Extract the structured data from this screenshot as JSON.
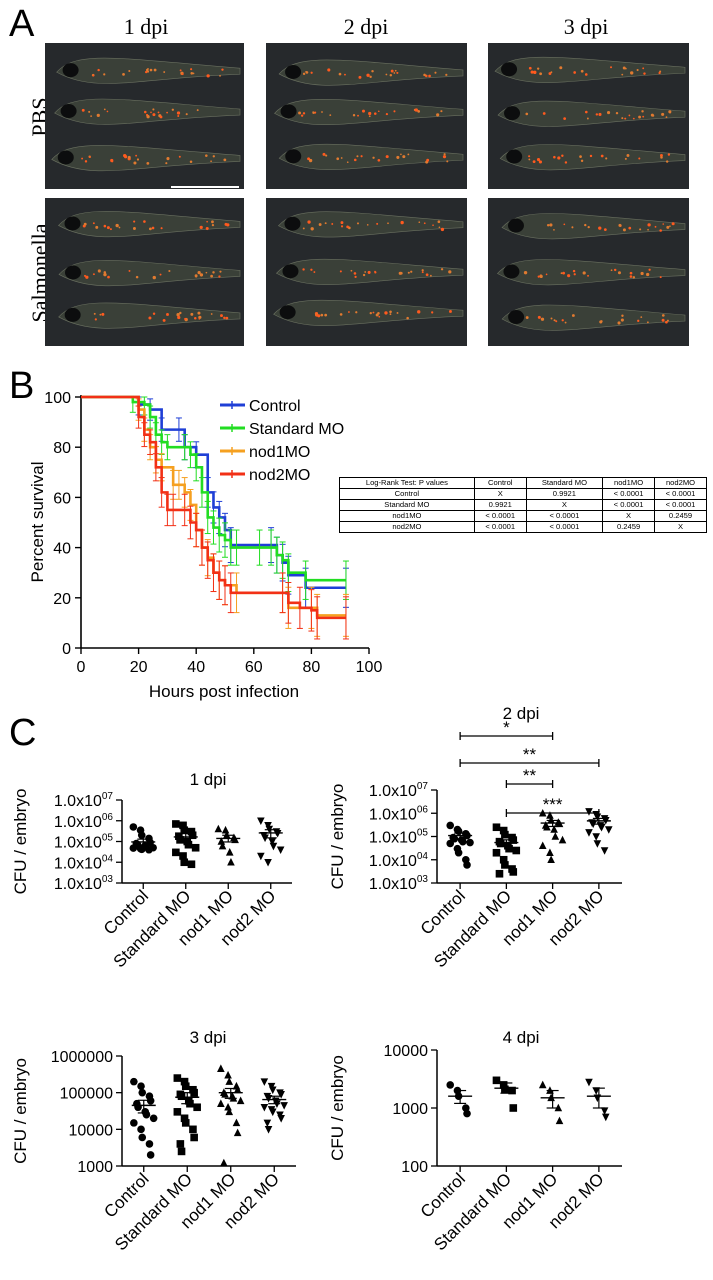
{
  "panel_labels": {
    "a": "A",
    "b": "B",
    "c": "C"
  },
  "panel_a": {
    "columns": [
      "1 dpi",
      "2 dpi",
      "3 dpi"
    ],
    "rows": [
      "PBS",
      "Salmonella"
    ]
  },
  "log_rank_table": {
    "title": "Log-Rank Test: P values",
    "headers": [
      "Control",
      "Standard MO",
      "nod1MO",
      "nod2MO"
    ],
    "rows": [
      {
        "label": "Control",
        "cells": [
          "X",
          "0.9921",
          "< 0.0001",
          "< 0.0001"
        ]
      },
      {
        "label": "Standard MO",
        "cells": [
          "0.9921",
          "X",
          "< 0.0001",
          "< 0.0001"
        ]
      },
      {
        "label": "nod1MO",
        "cells": [
          "< 0.0001",
          "< 0.0001",
          "X",
          "0.2459"
        ]
      },
      {
        "label": "nod2MO",
        "cells": [
          "< 0.0001",
          "< 0.0001",
          "0.2459",
          "X"
        ]
      }
    ]
  },
  "chart_data": [
    {
      "id": "survival",
      "type": "line",
      "xlabel": "Hours post infection",
      "ylabel": "Percent survival",
      "xlim": [
        0,
        100
      ],
      "ylim": [
        0,
        100
      ],
      "xticks": [
        "0",
        "20",
        "40",
        "60",
        "80",
        "100"
      ],
      "yticks": [
        "0",
        "20",
        "40",
        "60",
        "80",
        "100"
      ],
      "legend_position": "top-center",
      "series": [
        {
          "name": "Control",
          "color": "#1f3fd6",
          "points": [
            [
              0,
              100
            ],
            [
              18,
              100
            ],
            [
              20,
              97
            ],
            [
              24,
              95
            ],
            [
              28,
              87
            ],
            [
              34,
              87
            ],
            [
              36,
              80
            ],
            [
              40,
              77
            ],
            [
              44,
              62
            ],
            [
              46,
              56
            ],
            [
              48,
              52
            ],
            [
              50,
              47
            ],
            [
              52,
              41
            ],
            [
              66,
              41
            ],
            [
              68,
              37
            ],
            [
              70,
              34
            ],
            [
              72,
              29
            ],
            [
              78,
              24
            ],
            [
              92,
              24
            ]
          ]
        },
        {
          "name": "Standard MO",
          "color": "#22dd22",
          "points": [
            [
              0,
              100
            ],
            [
              15,
              100
            ],
            [
              18,
              98
            ],
            [
              22,
              97
            ],
            [
              24,
              92
            ],
            [
              26,
              85
            ],
            [
              28,
              82
            ],
            [
              30,
              80
            ],
            [
              36,
              80
            ],
            [
              38,
              77
            ],
            [
              40,
              72
            ],
            [
              42,
              62
            ],
            [
              44,
              52
            ],
            [
              46,
              48
            ],
            [
              48,
              45
            ],
            [
              50,
              43
            ],
            [
              52,
              40
            ],
            [
              54,
              40
            ],
            [
              62,
              40
            ],
            [
              66,
              40
            ],
            [
              68,
              37
            ],
            [
              70,
              35
            ],
            [
              72,
              30
            ],
            [
              78,
              27
            ],
            [
              92,
              27
            ]
          ]
        },
        {
          "name": "nod1MO",
          "color": "#f5a020",
          "points": [
            [
              0,
              100
            ],
            [
              18,
              100
            ],
            [
              20,
              95
            ],
            [
              22,
              87
            ],
            [
              24,
              80
            ],
            [
              26,
              75
            ],
            [
              28,
              72
            ],
            [
              32,
              65
            ],
            [
              34,
              65
            ],
            [
              36,
              62
            ],
            [
              38,
              57
            ],
            [
              40,
              47
            ],
            [
              42,
              40
            ],
            [
              44,
              36
            ],
            [
              46,
              30
            ],
            [
              48,
              27
            ],
            [
              50,
              25
            ],
            [
              54,
              22
            ],
            [
              70,
              22
            ],
            [
              72,
              16
            ],
            [
              80,
              16
            ],
            [
              82,
              13
            ],
            [
              92,
              13
            ]
          ]
        },
        {
          "name": "nod2MO",
          "color": "#f23016",
          "points": [
            [
              0,
              100
            ],
            [
              18,
              100
            ],
            [
              20,
              92
            ],
            [
              22,
              85
            ],
            [
              24,
              82
            ],
            [
              26,
              72
            ],
            [
              28,
              62
            ],
            [
              30,
              55
            ],
            [
              32,
              55
            ],
            [
              36,
              55
            ],
            [
              38,
              50
            ],
            [
              40,
              47
            ],
            [
              42,
              40
            ],
            [
              44,
              35
            ],
            [
              46,
              30
            ],
            [
              48,
              27
            ],
            [
              50,
              25
            ],
            [
              52,
              22
            ],
            [
              70,
              22
            ],
            [
              72,
              18
            ],
            [
              76,
              16
            ],
            [
              80,
              15
            ],
            [
              82,
              12
            ],
            [
              92,
              12
            ]
          ]
        }
      ]
    },
    {
      "id": "cfu_1dpi",
      "type": "scatter",
      "title": "1 dpi",
      "ylabel": "CFU / embryo",
      "scale": "log",
      "ylim": [
        1000,
        10000000
      ],
      "ytick_values": [
        1000,
        10000,
        100000,
        1000000,
        10000000
      ],
      "ytick_labels": [
        [
          "1.0x10",
          "03"
        ],
        [
          "1.0x10",
          "04"
        ],
        [
          "1.0x10",
          "05"
        ],
        [
          "1.0x10",
          "06"
        ],
        [
          "1.0x10",
          "07"
        ]
      ],
      "categories": [
        "Control",
        "Standard MO",
        "nod1 MO",
        "nod2 MO"
      ],
      "markers": [
        "circle",
        "square",
        "triangle-up",
        "triangle-down"
      ],
      "values": [
        [
          500000,
          350000,
          200000,
          140000,
          90000,
          80000,
          70000,
          60000,
          55000,
          50000,
          48000,
          45000,
          42000,
          40000
        ],
        [
          700000,
          600000,
          350000,
          300000,
          200000,
          180000,
          120000,
          100000,
          70000,
          50000,
          30000,
          20000,
          10000,
          8000
        ],
        [
          400000,
          350000,
          200000,
          150000,
          120000,
          100000,
          60000,
          30000,
          10000
        ],
        [
          1000000,
          600000,
          400000,
          300000,
          250000,
          200000,
          150000,
          100000,
          60000,
          40000,
          20000,
          10000
        ]
      ],
      "mean": [
        95000,
        165000,
        140000,
        260000
      ],
      "sem_low": [
        65000,
        100000,
        95000,
        150000
      ],
      "sem_high": [
        130000,
        240000,
        200000,
        370000
      ]
    },
    {
      "id": "cfu_2dpi",
      "type": "scatter",
      "title": "2 dpi",
      "ylabel": "CFU / embryo",
      "scale": "log",
      "ylim": [
        1000,
        10000000
      ],
      "ytick_values": [
        1000,
        10000,
        100000,
        1000000,
        10000000
      ],
      "ytick_labels": [
        [
          "1.0x10",
          "03"
        ],
        [
          "1.0x10",
          "04"
        ],
        [
          "1.0x10",
          "05"
        ],
        [
          "1.0x10",
          "06"
        ],
        [
          "1.0x10",
          "07"
        ]
      ],
      "categories": [
        "Control",
        "Standard MO",
        "nod1 MO",
        "nod2 MO"
      ],
      "markers": [
        "circle",
        "square",
        "triangle-up",
        "triangle-down"
      ],
      "values": [
        [
          300000,
          200000,
          170000,
          130000,
          110000,
          90000,
          80000,
          70000,
          60000,
          55000,
          50000,
          30000,
          20000,
          10000,
          6000
        ],
        [
          250000,
          180000,
          120000,
          90000,
          70000,
          60000,
          50000,
          40000,
          30000,
          25000,
          20000,
          10000,
          6000,
          4000,
          3000,
          2500
        ],
        [
          1000000,
          800000,
          500000,
          400000,
          350000,
          300000,
          250000,
          200000,
          100000,
          70000,
          40000,
          20000,
          10000
        ],
        [
          1200000,
          900000,
          700000,
          600000,
          500000,
          400000,
          350000,
          300000,
          250000,
          200000,
          150000,
          100000,
          50000,
          25000
        ]
      ],
      "mean": [
        110000,
        55000,
        380000,
        470000
      ],
      "sem_low": [
        80000,
        38000,
        270000,
        340000
      ],
      "sem_high": [
        140000,
        72000,
        490000,
        600000
      ],
      "significance": [
        {
          "from": 0,
          "to": 2,
          "label": "*"
        },
        {
          "from": 0,
          "to": 3,
          "label": "**"
        },
        {
          "from": 1,
          "to": 2,
          "label": "**"
        },
        {
          "from": 1,
          "to": 3,
          "label": "***"
        }
      ]
    },
    {
      "id": "cfu_3dpi",
      "type": "scatter",
      "title": "3 dpi",
      "ylabel": "CFU / embryo",
      "scale": "log",
      "ylim": [
        1000,
        1000000
      ],
      "ytick_values": [
        1000,
        10000,
        100000,
        1000000
      ],
      "ytick_labels": [
        [
          "1000",
          ""
        ],
        [
          "10000",
          ""
        ],
        [
          "100000",
          ""
        ],
        [
          "1000000",
          ""
        ]
      ],
      "categories": [
        "Control",
        "Standard MO",
        "nod1 MO",
        "nod2 MO"
      ],
      "markers": [
        "circle",
        "square",
        "triangle-up",
        "triangle-down"
      ],
      "values": [
        [
          200000,
          150000,
          100000,
          80000,
          60000,
          50000,
          40000,
          30000,
          25000,
          20000,
          15000,
          10000,
          6000,
          4000,
          2000
        ],
        [
          250000,
          200000,
          150000,
          120000,
          100000,
          90000,
          80000,
          60000,
          50000,
          40000,
          30000,
          20000,
          15000,
          10000,
          6000,
          4000,
          2500
        ],
        [
          450000,
          300000,
          200000,
          150000,
          120000,
          100000,
          90000,
          80000,
          70000,
          60000,
          50000,
          40000,
          30000,
          15000,
          8000,
          1200
        ],
        [
          200000,
          150000,
          120000,
          100000,
          90000,
          80000,
          70000,
          60000,
          50000,
          45000,
          40000,
          35000,
          30000,
          25000,
          20000,
          15000,
          10000
        ]
      ],
      "mean": [
        45000,
        75000,
        100000,
        65000
      ],
      "sem_low": [
        28000,
        50000,
        70000,
        50000
      ],
      "sem_high": [
        62000,
        100000,
        130000,
        80000
      ]
    },
    {
      "id": "cfu_4dpi",
      "type": "scatter",
      "title": "4 dpi",
      "ylabel": "CFU / embryo",
      "scale": "log",
      "ylim": [
        100,
        10000
      ],
      "ytick_values": [
        100,
        1000,
        10000
      ],
      "ytick_labels": [
        [
          "100",
          ""
        ],
        [
          "1000",
          ""
        ],
        [
          "10000",
          ""
        ]
      ],
      "categories": [
        "Control",
        "Standard MO",
        "nod1 MO",
        "nod2 MO"
      ],
      "markers": [
        "circle",
        "square",
        "triangle-up",
        "triangle-down"
      ],
      "values": [
        [
          2500,
          2000,
          1600,
          1000,
          800
        ],
        [
          3000,
          2500,
          2100,
          2000,
          1000
        ],
        [
          2500,
          2000,
          1500,
          1000,
          600
        ],
        [
          2800,
          2000,
          1500,
          900,
          700
        ]
      ],
      "mean": [
        1600,
        2200,
        1500,
        1600
      ],
      "sem_low": [
        1200,
        1800,
        1000,
        1000
      ],
      "sem_high": [
        2000,
        2700,
        2000,
        2200
      ]
    }
  ]
}
